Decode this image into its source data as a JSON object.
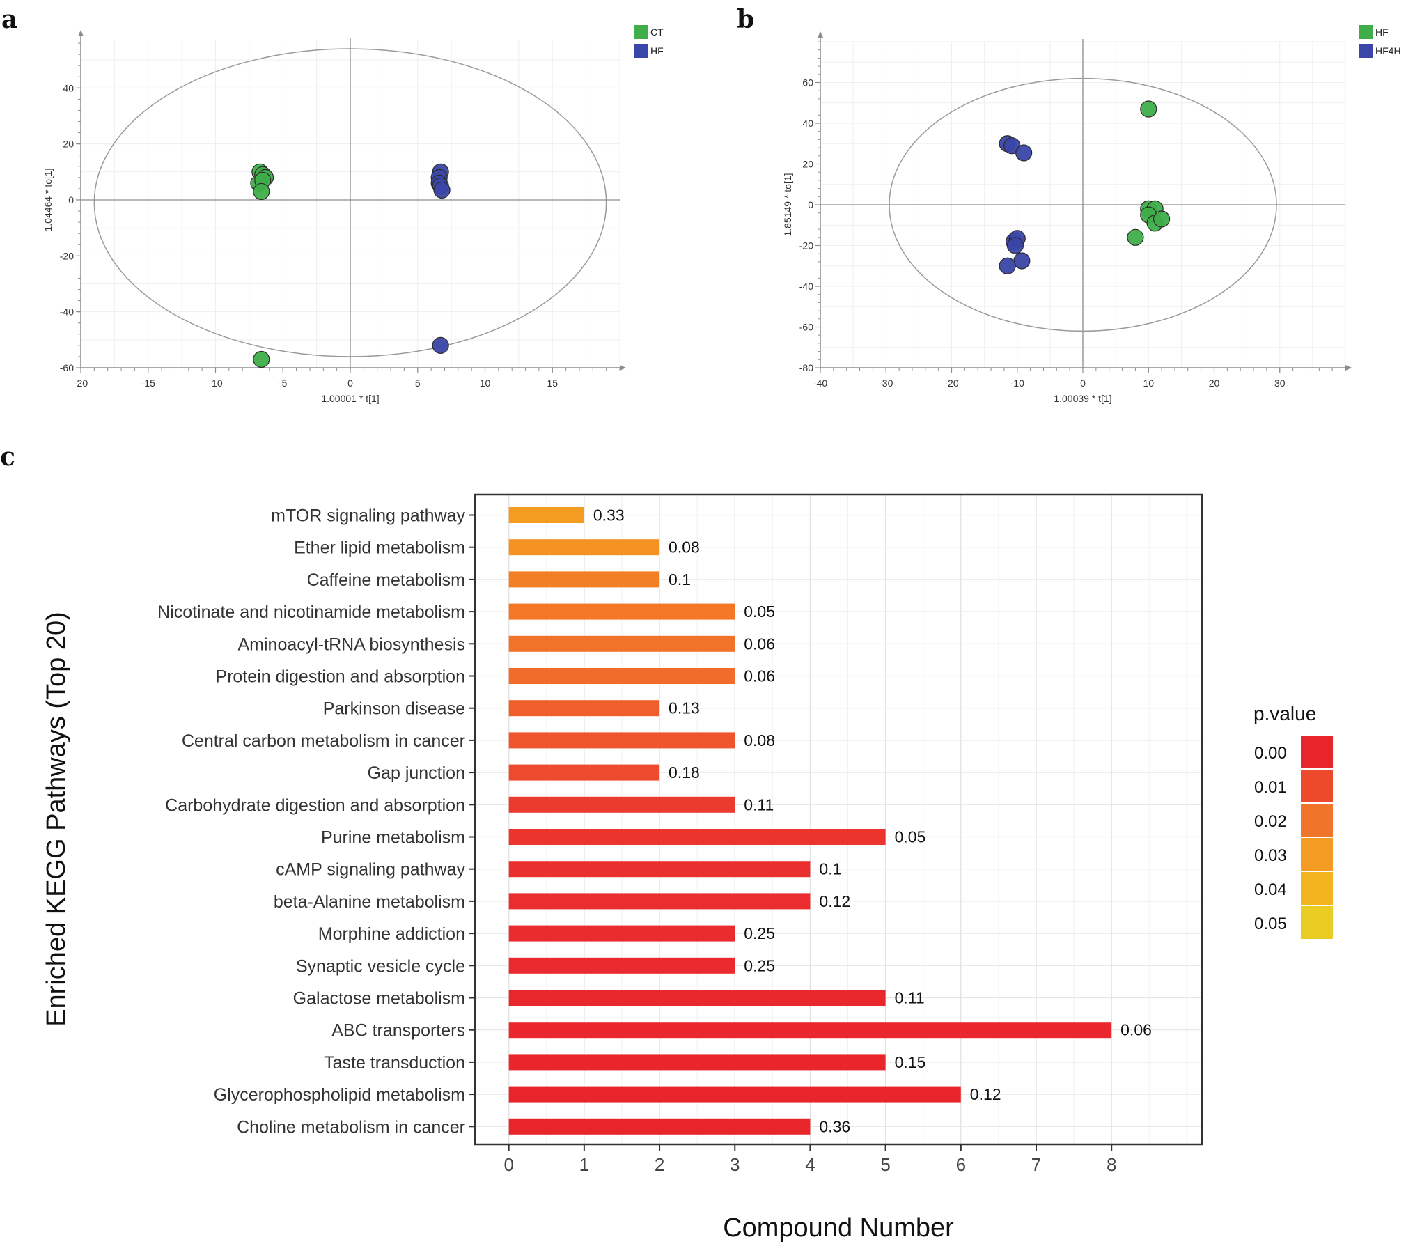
{
  "panels": {
    "a": "a",
    "b": "b",
    "c": "c"
  },
  "chart_data": [
    {
      "id": "a",
      "type": "scatter",
      "xlabel": "1.00001 * t[1]",
      "ylabel": "1.04464 * to[1]",
      "xlim": [
        -20,
        20
      ],
      "ylim": [
        -60,
        57
      ],
      "xticks": [
        -20,
        -15,
        -10,
        -5,
        0,
        5,
        10,
        15
      ],
      "yticks": [
        -60,
        -40,
        -20,
        0,
        20,
        40
      ],
      "ellipse": {
        "cx": 0,
        "cy": -1,
        "rx": 19,
        "ry": 55
      },
      "colors": {
        "CT": "#3fae49",
        "HF": "#3a46a8"
      },
      "legend": [
        "CT",
        "HF"
      ],
      "series": [
        {
          "name": "CT",
          "points": [
            [
              -6.7,
              10
            ],
            [
              -6.5,
              9
            ],
            [
              -6.3,
              8
            ],
            [
              -6.8,
              6
            ],
            [
              -6.5,
              7
            ],
            [
              -6.6,
              3
            ],
            [
              -6.6,
              -57
            ]
          ]
        },
        {
          "name": "HF",
          "points": [
            [
              6.7,
              10
            ],
            [
              6.6,
              8
            ],
            [
              6.6,
              6
            ],
            [
              6.7,
              5
            ],
            [
              6.8,
              3.5
            ],
            [
              6.7,
              -52
            ]
          ]
        }
      ]
    },
    {
      "id": "b",
      "type": "scatter",
      "xlabel": "1.00039 * t[1]",
      "ylabel": "1.85149 * to[1]",
      "xlim": [
        -40,
        40
      ],
      "ylim": [
        -80,
        80
      ],
      "xticks": [
        -40,
        -30,
        -20,
        -10,
        0,
        10,
        20,
        30
      ],
      "yticks": [
        -80,
        -60,
        -40,
        -20,
        0,
        20,
        40,
        60
      ],
      "ellipse": {
        "cx": 0,
        "cy": 0,
        "rx": 29.5,
        "ry": 62
      },
      "colors": {
        "HF": "#3fae49",
        "HF4H": "#3a46a8"
      },
      "legend": [
        "HF",
        "HF4H"
      ],
      "series": [
        {
          "name": "HF",
          "points": [
            [
              10,
              47
            ],
            [
              10,
              -2
            ],
            [
              11,
              -2
            ],
            [
              10,
              -5
            ],
            [
              11,
              -9
            ],
            [
              12,
              -7
            ],
            [
              8,
              -16
            ]
          ]
        },
        {
          "name": "HF4H",
          "points": [
            [
              -11.5,
              30
            ],
            [
              -10.8,
              29
            ],
            [
              -9,
              25.5
            ],
            [
              -10.5,
              -18
            ],
            [
              -10,
              -16.5
            ],
            [
              -10.3,
              -20
            ],
            [
              -9.3,
              -27.5
            ],
            [
              -11.5,
              -30
            ]
          ]
        }
      ]
    },
    {
      "id": "c",
      "type": "bar",
      "orientation": "horizontal",
      "ylabel": "Enriched KEGG Pathways (Top 20)",
      "xlabel": "Compound Number",
      "xlim": [
        -0.45,
        9.2
      ],
      "xticks": [
        0,
        1,
        2,
        3,
        4,
        5,
        6,
        7,
        8
      ],
      "categories": [
        "mTOR signaling pathway",
        "Ether lipid metabolism",
        "Caffeine metabolism",
        "Nicotinate and nicotinamide metabolism",
        "Aminoacyl-tRNA biosynthesis",
        "Protein digestion and absorption",
        "Parkinson disease",
        "Central carbon metabolism in cancer",
        "Gap junction",
        "Carbohydrate digestion and absorption",
        "Purine metabolism",
        "cAMP signaling pathway",
        "beta-Alanine metabolism",
        "Morphine addiction",
        "Synaptic vesicle cycle",
        "Galactose metabolism",
        "ABC transporters",
        "Taste transduction",
        "Glycerophospholipid metabolism",
        "Choline metabolism in cancer"
      ],
      "values": [
        1,
        2,
        2,
        3,
        3,
        3,
        2,
        3,
        2,
        3,
        5,
        4,
        4,
        3,
        3,
        5,
        8,
        5,
        6,
        4
      ],
      "bar_labels": [
        "0.33",
        "0.08",
        "0.1",
        "0.05",
        "0.06",
        "0.06",
        "0.13",
        "0.08",
        "0.18",
        "0.11",
        "0.05",
        "0.1",
        "0.12",
        "0.25",
        "0.25",
        "0.11",
        "0.06",
        "0.15",
        "0.12",
        "0.36"
      ],
      "bar_colors": [
        "#f49b22",
        "#f49324",
        "#f27f26",
        "#f37727",
        "#f1732a",
        "#f16c2b",
        "#ef5f2c",
        "#ef552c",
        "#ee4a2d",
        "#eb3b2e",
        "#eb342e",
        "#ea302f",
        "#ea2e2e",
        "#ea2c2f",
        "#ea2a2e",
        "#e9282d",
        "#e9272d",
        "#e9262c",
        "#e9252c",
        "#e9252c"
      ],
      "legend_title": "p.value",
      "legend_ticks": [
        "0.00",
        "0.01",
        "0.02",
        "0.03",
        "0.04",
        "0.05"
      ],
      "legend_colors": [
        "#e9252c",
        "#ed4a2b",
        "#f0742a",
        "#f49b24",
        "#f4b41f",
        "#e9cd22"
      ]
    }
  ]
}
